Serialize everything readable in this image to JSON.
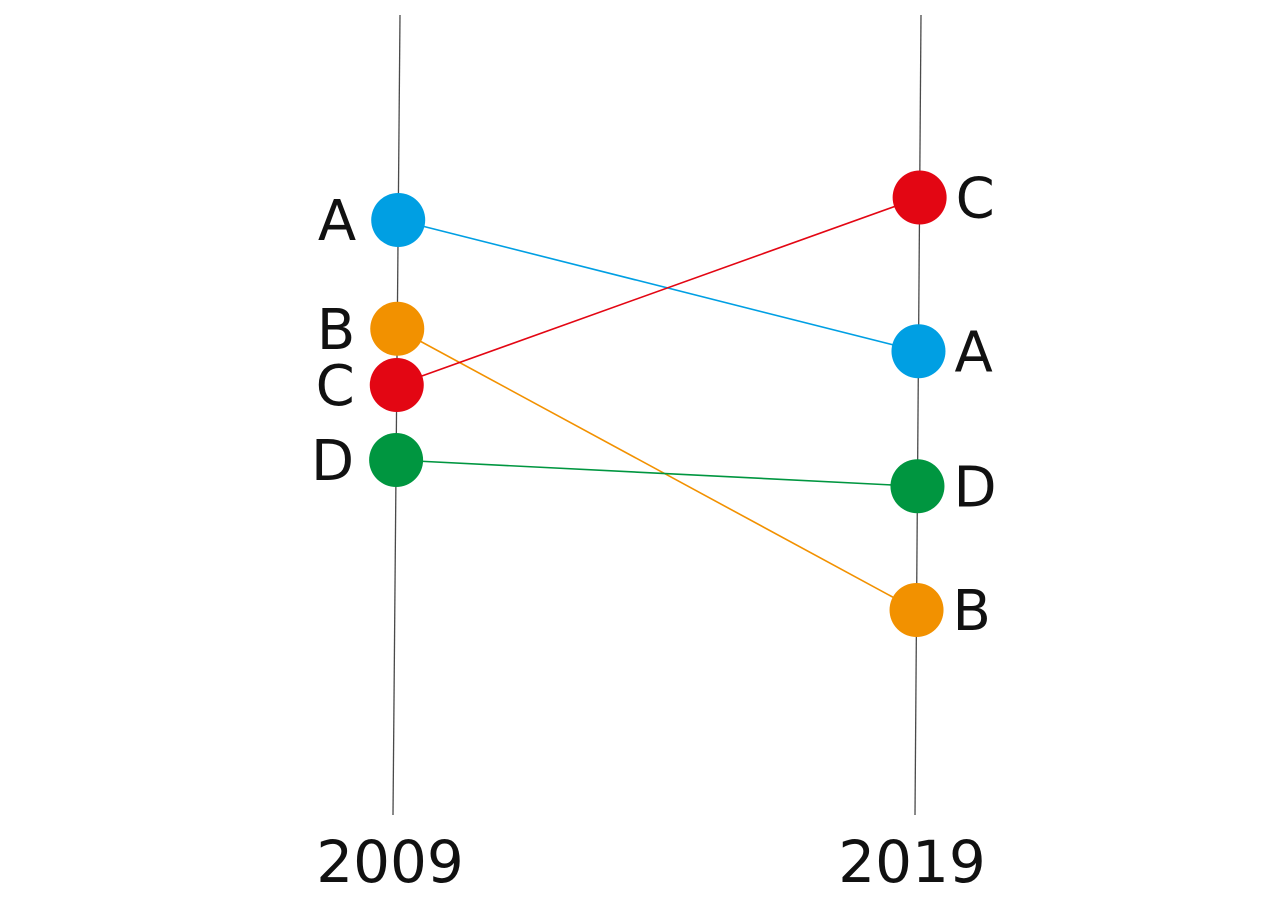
{
  "chart_data": {
    "type": "line",
    "subtype": "slope",
    "x": [
      "2009",
      "2019"
    ],
    "y_axis": {
      "visible": false,
      "inverted": true
    },
    "grid": false,
    "legend": "none",
    "series": [
      {
        "name": "A",
        "values": [
          2.0,
          3.75
        ],
        "color": "#009fe3"
      },
      {
        "name": "B",
        "values": [
          3.45,
          7.2
        ],
        "color": "#f29100"
      },
      {
        "name": "C",
        "values": [
          4.2,
          1.7
        ],
        "color": "#e30613"
      },
      {
        "name": "D",
        "values": [
          5.2,
          5.55
        ],
        "color": "#009640"
      }
    ]
  }
}
